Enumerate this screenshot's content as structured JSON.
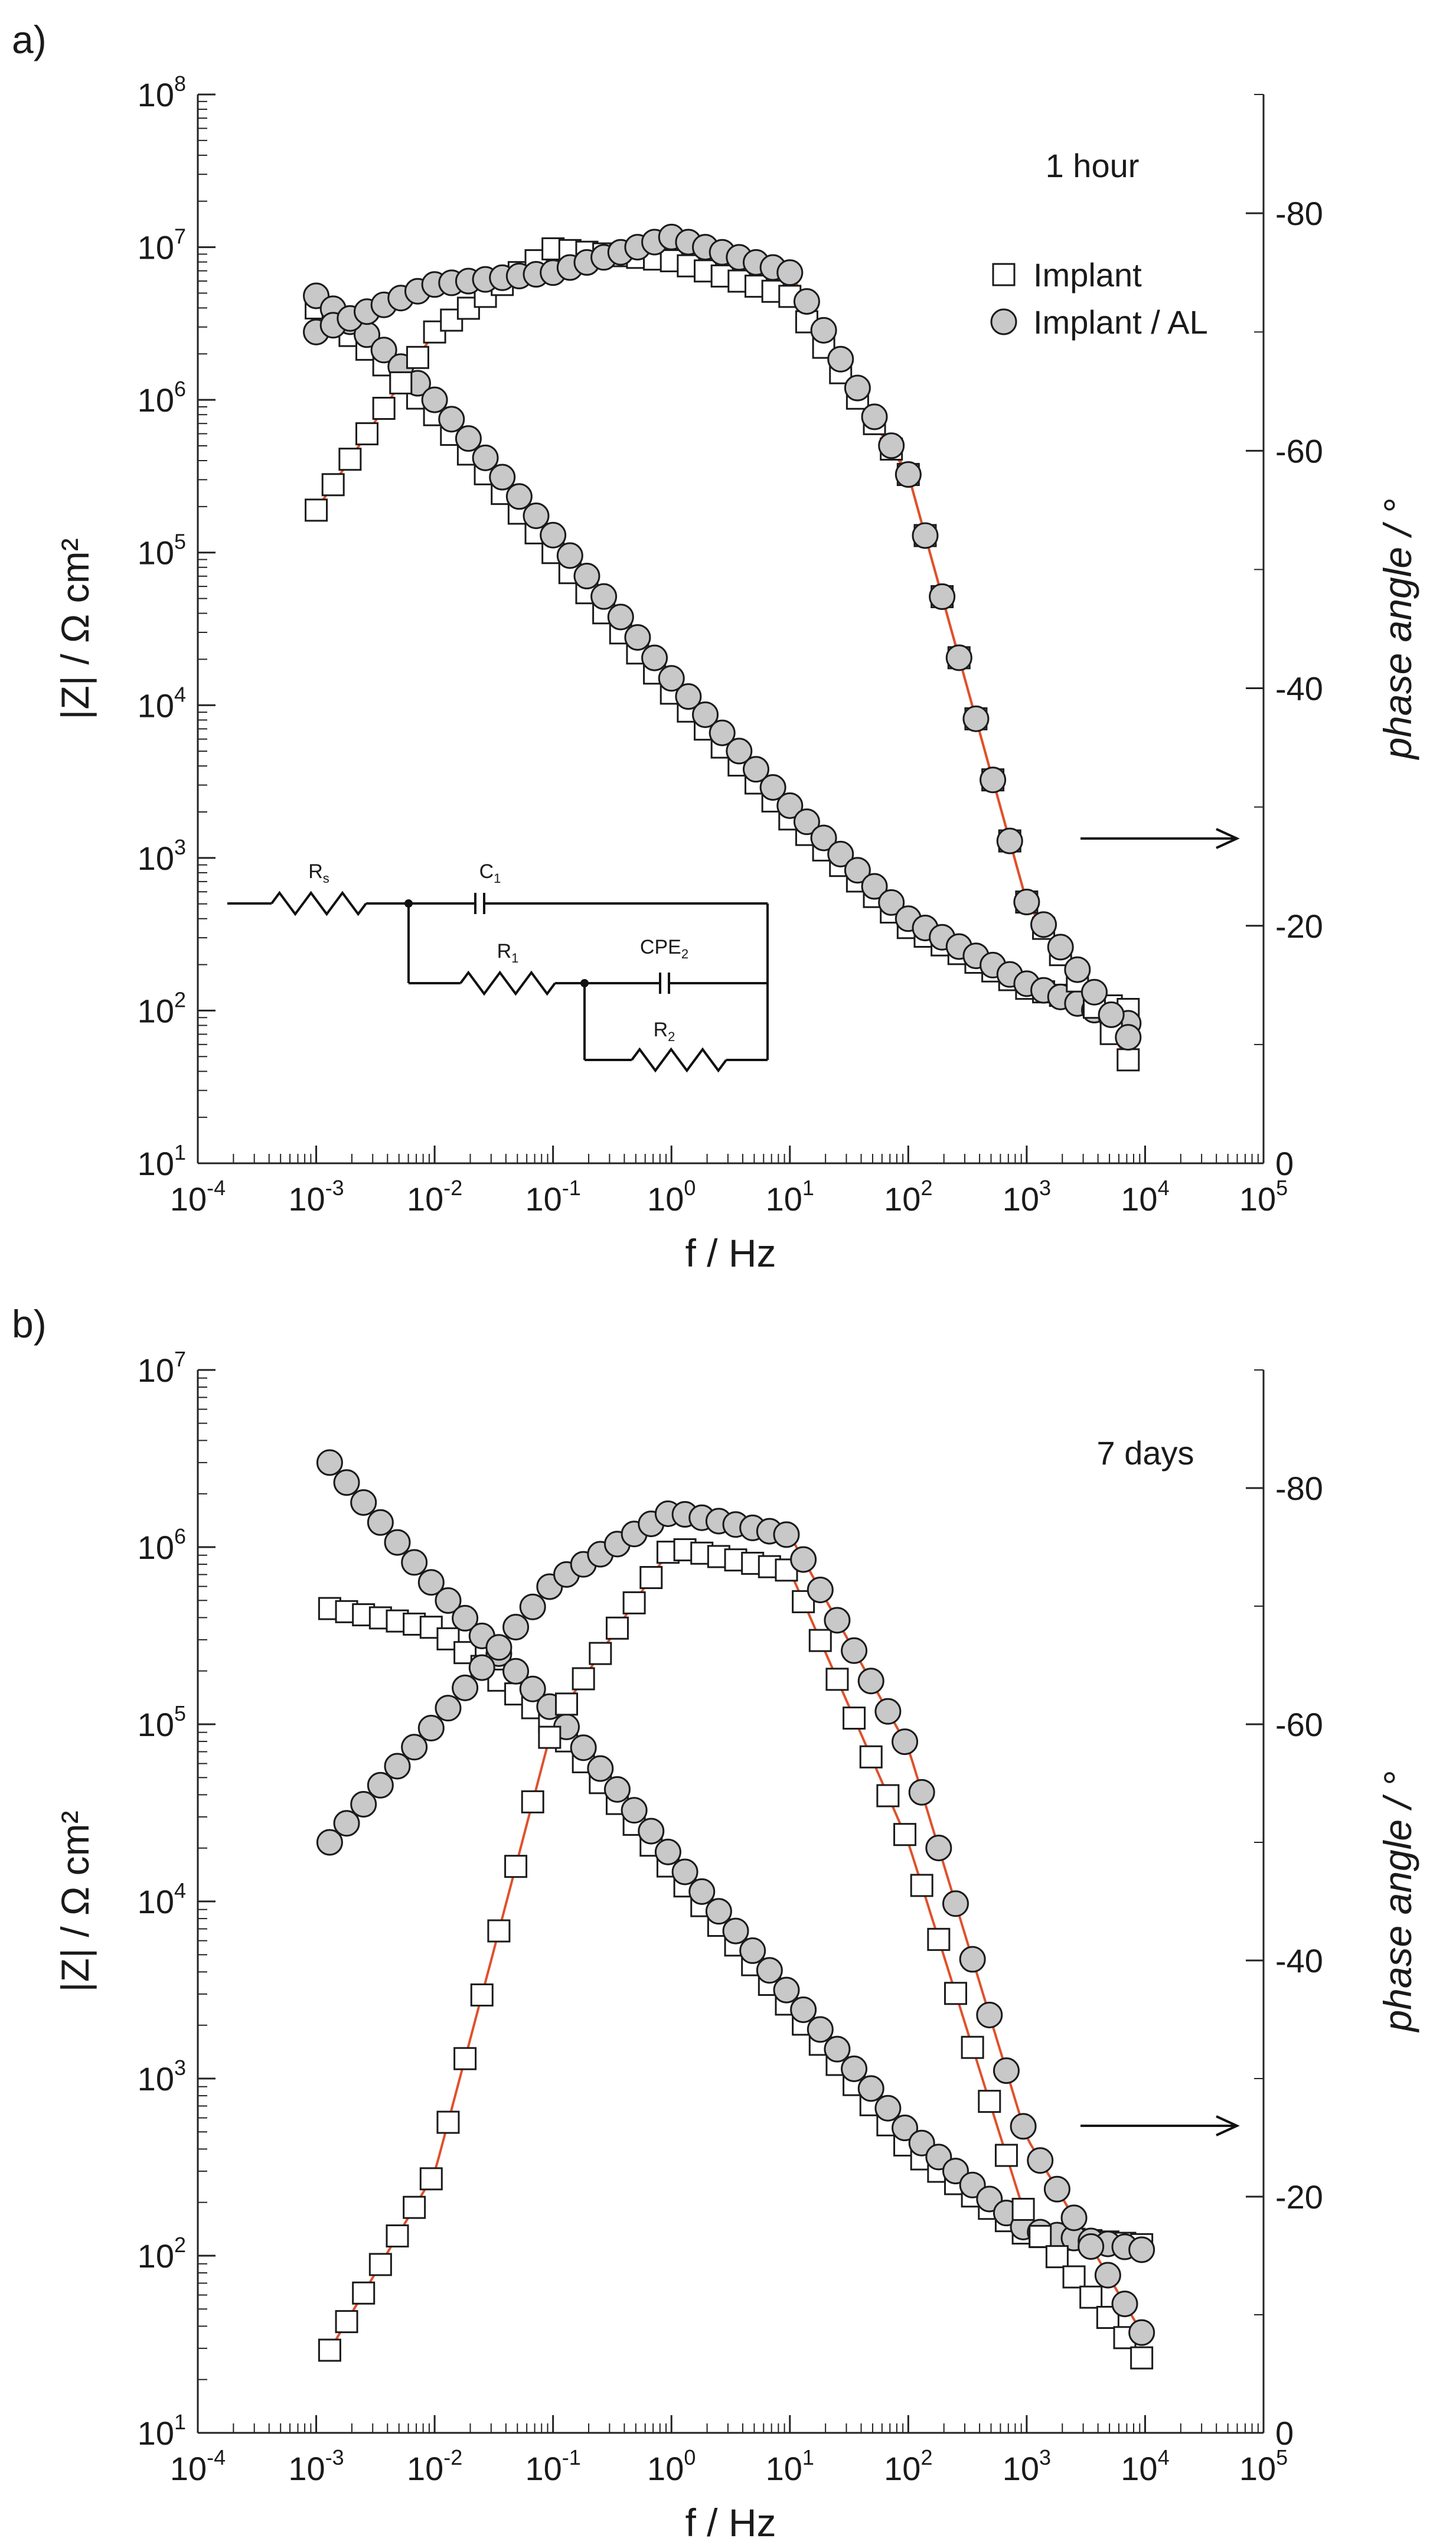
{
  "figure": {
    "panels": [
      {
        "label": "a)",
        "annotation": "1 hour",
        "legend": [
          {
            "marker": "square-open",
            "label": "Implant"
          },
          {
            "marker": "circle-gray",
            "label": "Implant / AL"
          }
        ],
        "circuit": {
          "labels": [
            "Rs",
            "C1",
            "R1",
            "CPE2",
            "R2"
          ],
          "display": [
            {
              "main": "R",
              "sub": "s"
            },
            {
              "main": "C",
              "sub": "1"
            },
            {
              "main": "R",
              "sub": "1"
            },
            {
              "main": "CPE",
              "sub": "2"
            },
            {
              "main": "R",
              "sub": "2"
            }
          ]
        }
      },
      {
        "label": "b)",
        "annotation": "7 days",
        "legend": []
      }
    ],
    "colors": {
      "fit_line": "#e0502a",
      "circle_fill": "#c8c8c8",
      "marker_stroke": "#1a1a1a"
    }
  },
  "chart_data": [
    {
      "type": "scatter",
      "panel": "a)",
      "title": "",
      "annotation": "1 hour",
      "xlabel": "f / Hz",
      "ylabel_left": "|Z| / Ω cm²",
      "ylabel_right": "phase angle / °",
      "xscale": "log",
      "yscale_left": "log",
      "xlim": [
        0.0001,
        100000
      ],
      "ylim_left": [
        10,
        100000000
      ],
      "ylim_right": [
        0,
        -90
      ],
      "xticks": [
        "10-4",
        "10-3",
        "10-2",
        "10-1",
        "100",
        "101",
        "102",
        "103",
        "104",
        "105"
      ],
      "yticks_left": [
        "101",
        "102",
        "103",
        "104",
        "105",
        "106",
        "107",
        "108"
      ],
      "yticks_right": [
        "0",
        "-20",
        "-40",
        "-60",
        "-80"
      ],
      "legend_position": "top-right",
      "series": [
        {
          "name": "Implant",
          "marker": "square-open",
          "quantity": "|Z|",
          "axis": "left",
          "freq_range": [
            0.001,
            8000
          ],
          "points": [
            [
              0.001,
              4000000
            ],
            [
              0.003,
              2000000
            ],
            [
              0.01,
              800000
            ],
            [
              0.1,
              100000
            ],
            [
              1,
              12000
            ],
            [
              10,
              1800
            ],
            [
              100,
              350
            ],
            [
              1000,
              140
            ],
            [
              8000,
              100
            ]
          ]
        },
        {
          "name": "Implant / AL",
          "marker": "circle-gray",
          "quantity": "|Z|",
          "axis": "left",
          "freq_range": [
            0.001,
            8000
          ],
          "points": [
            [
              0.001,
              4800000
            ],
            [
              0.003,
              2500000
            ],
            [
              0.01,
              1000000
            ],
            [
              0.1,
              130000
            ],
            [
              1,
              15000
            ],
            [
              10,
              2200
            ],
            [
              100,
              400
            ],
            [
              1000,
              150
            ],
            [
              8000,
              80
            ]
          ]
        },
        {
          "name": "Implant",
          "marker": "square-open",
          "quantity": "phase",
          "axis": "right",
          "freq_range": [
            0.001,
            8000
          ],
          "points": [
            [
              0.001,
              -55
            ],
            [
              0.01,
              -70
            ],
            [
              0.1,
              -77
            ],
            [
              1,
              -76
            ],
            [
              10,
              -73
            ],
            [
              100,
              -58
            ],
            [
              1000,
              -22
            ],
            [
              8000,
              -8
            ]
          ]
        },
        {
          "name": "Implant / AL",
          "marker": "circle-gray",
          "quantity": "phase",
          "axis": "right",
          "freq_range": [
            0.001,
            8000
          ],
          "points": [
            [
              0.001,
              -70
            ],
            [
              0.01,
              -74
            ],
            [
              0.1,
              -75
            ],
            [
              1,
              -78
            ],
            [
              10,
              -75
            ],
            [
              100,
              -58
            ],
            [
              1000,
              -22
            ],
            [
              8000,
              -10
            ]
          ]
        }
      ]
    },
    {
      "type": "scatter",
      "panel": "b)",
      "title": "",
      "annotation": "7 days",
      "xlabel": "f / Hz",
      "ylabel_left": "|Z| / Ω cm²",
      "ylabel_right": "phase angle / °",
      "xscale": "log",
      "yscale_left": "log",
      "xlim": [
        0.0001,
        100000
      ],
      "ylim_left": [
        10,
        10000000
      ],
      "ylim_right": [
        0,
        -90
      ],
      "xticks": [
        "10-4",
        "10-3",
        "10-2",
        "10-1",
        "100",
        "101",
        "102",
        "103",
        "104",
        "105"
      ],
      "yticks_left": [
        "101",
        "102",
        "103",
        "104",
        "105",
        "106",
        "107"
      ],
      "yticks_right": [
        "0",
        "-20",
        "-40",
        "-60",
        "-80"
      ],
      "series": [
        {
          "name": "Implant",
          "marker": "square-open",
          "quantity": "|Z|",
          "axis": "left",
          "freq_range": [
            0.0013,
            10000
          ],
          "points": [
            [
              0.0013,
              450000
            ],
            [
              0.01,
              350000
            ],
            [
              0.1,
              100000
            ],
            [
              1,
              15000
            ],
            [
              10,
              2500
            ],
            [
              100,
              400
            ],
            [
              1000,
              130
            ],
            [
              10000,
              115
            ]
          ]
        },
        {
          "name": "Implant / AL",
          "marker": "circle-gray",
          "quantity": "|Z|",
          "axis": "left",
          "freq_range": [
            0.0013,
            12000
          ],
          "points": [
            [
              0.0013,
              3000000
            ],
            [
              0.01,
              600000
            ],
            [
              0.1,
              120000
            ],
            [
              1,
              18000
            ],
            [
              10,
              3000
            ],
            [
              100,
              500
            ],
            [
              1000,
              140
            ],
            [
              12000,
              105
            ]
          ]
        },
        {
          "name": "Implant",
          "marker": "square-open",
          "quantity": "phase",
          "axis": "right",
          "freq_range": [
            0.0013,
            10000
          ],
          "points": [
            [
              0.0013,
              -7
            ],
            [
              0.01,
              -22
            ],
            [
              0.03,
              -40
            ],
            [
              0.1,
              -60
            ],
            [
              1,
              -75
            ],
            [
              10,
              -73
            ],
            [
              100,
              -50
            ],
            [
              1000,
              -18
            ],
            [
              10000,
              -6
            ]
          ]
        },
        {
          "name": "Implant / AL",
          "marker": "circle-gray",
          "quantity": "phase",
          "axis": "right",
          "freq_range": [
            0.0013,
            10000
          ],
          "points": [
            [
              0.0013,
              -50
            ],
            [
              0.01,
              -60
            ],
            [
              0.1,
              -72
            ],
            [
              1,
              -78
            ],
            [
              10,
              -76
            ],
            [
              100,
              -58
            ],
            [
              1000,
              -25
            ],
            [
              10000,
              -8
            ]
          ]
        }
      ]
    }
  ]
}
